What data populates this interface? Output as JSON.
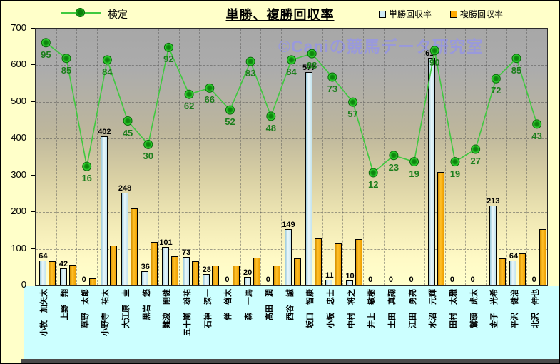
{
  "header": {
    "title": "単勝、複勝回収率",
    "legend_left": {
      "label": "検定"
    },
    "legend_right": [
      {
        "label": "単勝回収率",
        "swatch_color": "#CFEAF5"
      },
      {
        "label": "複勝回収率",
        "swatch_color": "#FFAA00"
      }
    ]
  },
  "watermark": "©Caniの競馬データ研究室",
  "chart_data": {
    "type": "bar",
    "title": "単勝、複勝回収率",
    "categories": [
      "小牧　加矢太",
      "上野　翔",
      "草野　太郎",
      "小野寺　祐太",
      "大江原　圭",
      "黒岩　悠",
      "難波　剛健",
      "五十嵐　雄祐",
      "石神　深一",
      "伴　啓太",
      "森　一馬",
      "高田　潤",
      "西谷　誠",
      "坂口　智康",
      "小坂　忠士",
      "中村　将之",
      "井上　敏樹",
      "土田　真翔",
      "江田　勇亮",
      "水沼　元輝",
      "田村　太雅",
      "鷲頭　虎太",
      "金子　光希",
      "平沢　健治",
      "北沢　伸也"
    ],
    "series": [
      {
        "name": "単勝回収率",
        "type": "bar",
        "color": "#CFEAF5",
        "values": [
          64,
          42,
          0,
          402,
          248,
          36,
          101,
          73,
          28,
          0,
          20,
          0,
          149,
          577,
          11,
          10,
          0,
          0,
          0,
          617,
          0,
          0,
          213,
          64,
          0
        ],
        "data_labels": true
      },
      {
        "name": "複勝回収率",
        "type": "bar",
        "color": "#FFAA00",
        "values": [
          62,
          53,
          15,
          105,
          207,
          115,
          75,
          62,
          50,
          50,
          72,
          50,
          70,
          125,
          110,
          122,
          0,
          0,
          0,
          305,
          0,
          0,
          70,
          83,
          150
        ],
        "data_labels": false
      },
      {
        "name": "検定",
        "type": "line",
        "color": "#3FC93F",
        "values": [
          95,
          85,
          16,
          84,
          45,
          30,
          92,
          62,
          66,
          52,
          83,
          48,
          84,
          88,
          73,
          57,
          12,
          23,
          19,
          90,
          19,
          27,
          72,
          85,
          43
        ],
        "data_labels": true,
        "secondary_axis": true
      }
    ],
    "y_axis": {
      "min": 0,
      "max": 700,
      "ticks": [
        0,
        100,
        200,
        300,
        400,
        500,
        600,
        700
      ]
    },
    "secondary_axis_range": [
      -60,
      104
    ],
    "grid": true,
    "legend_position": "top"
  }
}
